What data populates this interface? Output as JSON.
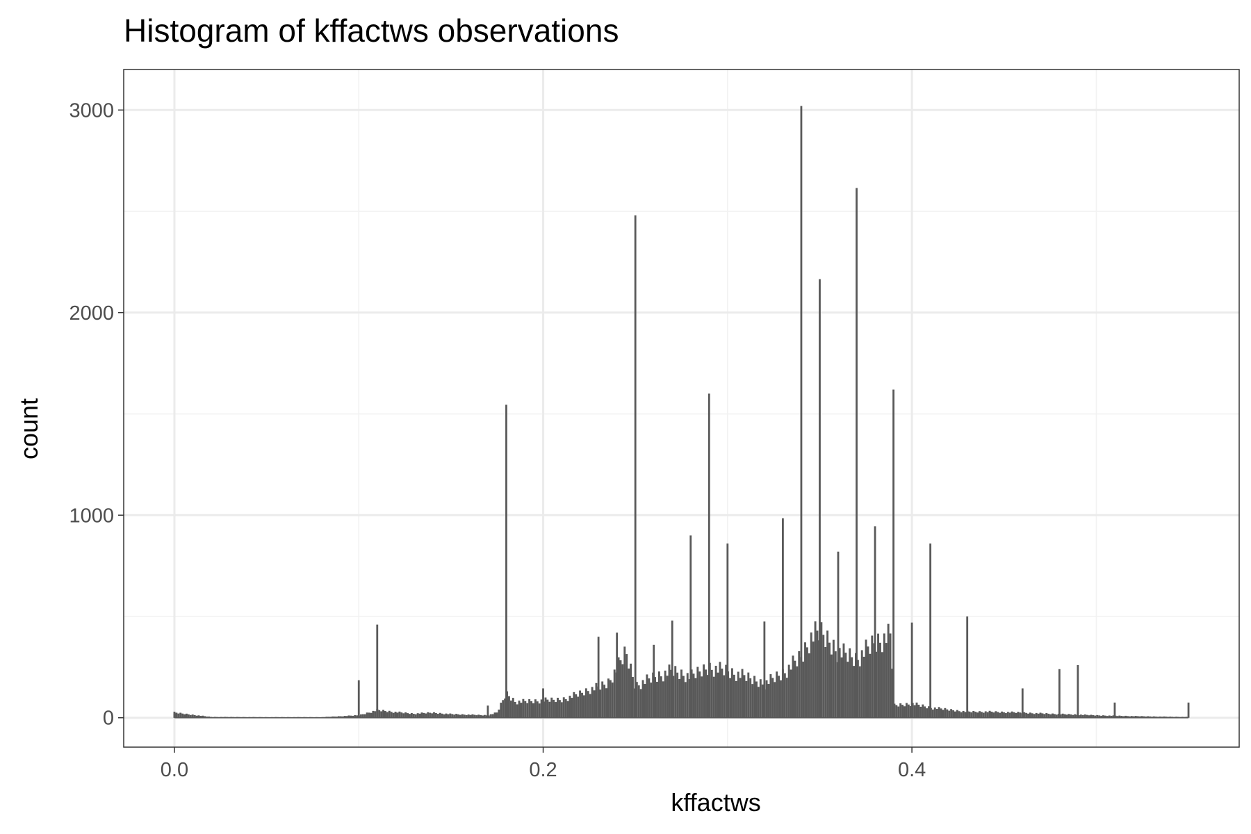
{
  "chart_data": {
    "type": "bar",
    "title": "Histogram of kffactws observations",
    "xlabel": "kffactws",
    "ylabel": "count",
    "xlim": [
      -0.0275,
      0.5775
    ],
    "ylim": [
      -145,
      3200
    ],
    "x_ticks": [
      0.0,
      0.2,
      0.4
    ],
    "x_tick_labels": [
      "0.0",
      "0.2",
      "0.4"
    ],
    "y_ticks": [
      0,
      1000,
      2000,
      3000
    ],
    "y_tick_labels": [
      "0",
      "1000",
      "2000",
      "3000"
    ],
    "grid": true,
    "bin_width": 0.0011,
    "baseline_bins": [
      {
        "x": 0.0,
        "count": 25
      },
      {
        "x": 0.02,
        "count": 4
      },
      {
        "x": 0.05,
        "count": 3
      },
      {
        "x": 0.08,
        "count": 3
      },
      {
        "x": 0.1,
        "count": 12
      },
      {
        "x": 0.11,
        "count": 38
      },
      {
        "x": 0.12,
        "count": 28
      },
      {
        "x": 0.13,
        "count": 20
      },
      {
        "x": 0.14,
        "count": 25
      },
      {
        "x": 0.15,
        "count": 18
      },
      {
        "x": 0.16,
        "count": 15
      },
      {
        "x": 0.17,
        "count": 12
      },
      {
        "x": 0.175,
        "count": 25
      },
      {
        "x": 0.18,
        "count": 120
      },
      {
        "x": 0.185,
        "count": 80
      },
      {
        "x": 0.19,
        "count": 80
      },
      {
        "x": 0.2,
        "count": 85
      },
      {
        "x": 0.21,
        "count": 90
      },
      {
        "x": 0.22,
        "count": 120
      },
      {
        "x": 0.225,
        "count": 140
      },
      {
        "x": 0.23,
        "count": 150
      },
      {
        "x": 0.235,
        "count": 170
      },
      {
        "x": 0.24,
        "count": 240
      },
      {
        "x": 0.245,
        "count": 320
      },
      {
        "x": 0.25,
        "count": 160
      },
      {
        "x": 0.26,
        "count": 200
      },
      {
        "x": 0.27,
        "count": 230
      },
      {
        "x": 0.28,
        "count": 200
      },
      {
        "x": 0.29,
        "count": 250
      },
      {
        "x": 0.3,
        "count": 230
      },
      {
        "x": 0.31,
        "count": 200
      },
      {
        "x": 0.32,
        "count": 170
      },
      {
        "x": 0.33,
        "count": 220
      },
      {
        "x": 0.34,
        "count": 300
      },
      {
        "x": 0.345,
        "count": 390
      },
      {
        "x": 0.35,
        "count": 420
      },
      {
        "x": 0.355,
        "count": 380
      },
      {
        "x": 0.36,
        "count": 330
      },
      {
        "x": 0.37,
        "count": 290
      },
      {
        "x": 0.38,
        "count": 370
      },
      {
        "x": 0.389,
        "count": 400
      },
      {
        "x": 0.39,
        "count": 60
      },
      {
        "x": 0.4,
        "count": 70
      },
      {
        "x": 0.41,
        "count": 50
      },
      {
        "x": 0.42,
        "count": 40
      },
      {
        "x": 0.43,
        "count": 30
      },
      {
        "x": 0.44,
        "count": 30
      },
      {
        "x": 0.46,
        "count": 25
      },
      {
        "x": 0.48,
        "count": 18
      },
      {
        "x": 0.5,
        "count": 12
      },
      {
        "x": 0.52,
        "count": 8
      },
      {
        "x": 0.54,
        "count": 5
      },
      {
        "x": 0.549,
        "count": 4
      }
    ],
    "spikes": [
      {
        "x": 0.0,
        "count": 30
      },
      {
        "x": 0.1,
        "count": 185
      },
      {
        "x": 0.11,
        "count": 460
      },
      {
        "x": 0.17,
        "count": 60
      },
      {
        "x": 0.18,
        "count": 1545
      },
      {
        "x": 0.2,
        "count": 145
      },
      {
        "x": 0.23,
        "count": 400
      },
      {
        "x": 0.24,
        "count": 420
      },
      {
        "x": 0.25,
        "count": 2480
      },
      {
        "x": 0.26,
        "count": 360
      },
      {
        "x": 0.27,
        "count": 480
      },
      {
        "x": 0.28,
        "count": 900
      },
      {
        "x": 0.29,
        "count": 1600
      },
      {
        "x": 0.3,
        "count": 860
      },
      {
        "x": 0.32,
        "count": 475
      },
      {
        "x": 0.33,
        "count": 985
      },
      {
        "x": 0.34,
        "count": 3020
      },
      {
        "x": 0.35,
        "count": 2165
      },
      {
        "x": 0.36,
        "count": 820
      },
      {
        "x": 0.37,
        "count": 2615
      },
      {
        "x": 0.38,
        "count": 945
      },
      {
        "x": 0.39,
        "count": 1620
      },
      {
        "x": 0.4,
        "count": 470
      },
      {
        "x": 0.41,
        "count": 860
      },
      {
        "x": 0.43,
        "count": 500
      },
      {
        "x": 0.46,
        "count": 145
      },
      {
        "x": 0.48,
        "count": 240
      },
      {
        "x": 0.49,
        "count": 260
      },
      {
        "x": 0.51,
        "count": 75
      },
      {
        "x": 0.55,
        "count": 75
      }
    ],
    "colors": {
      "bar": "#595959",
      "panel_border": "#333333",
      "grid_major": "#ebebeb",
      "grid_minor": "#f2f2f2",
      "tick_text": "#4d4d4d"
    }
  }
}
